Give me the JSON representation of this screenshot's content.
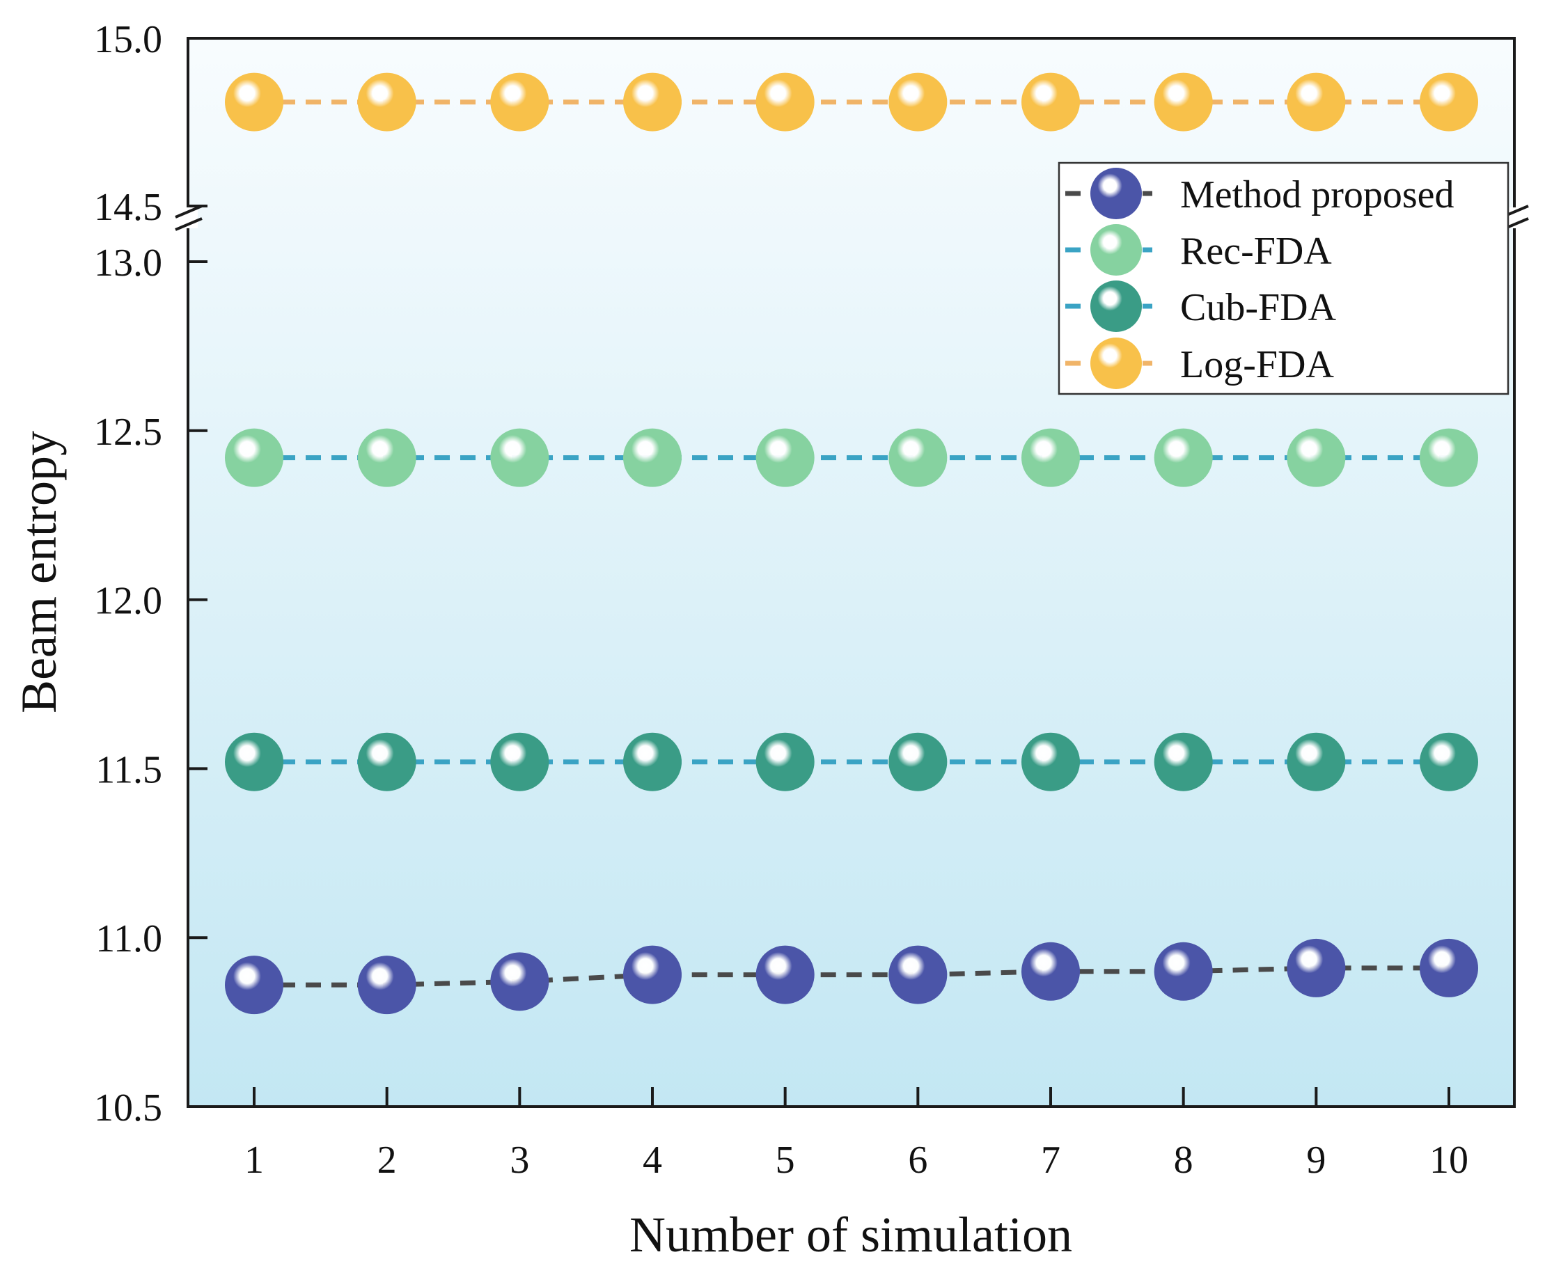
{
  "chart_data": {
    "type": "scatter",
    "xlabel": "Number of simulation",
    "ylabel": "Beam entropy",
    "x": [
      1,
      2,
      3,
      4,
      5,
      6,
      7,
      8,
      9,
      10
    ],
    "x_tick_labels": [
      "1",
      "2",
      "3",
      "4",
      "5",
      "6",
      "7",
      "8",
      "9",
      "10"
    ],
    "y_axis_break": {
      "lower_range": [
        10.5,
        13.1
      ],
      "upper_range": [
        14.5,
        15.0
      ]
    },
    "y_tick_labels": [
      "10.5",
      "11.0",
      "11.5",
      "12.0",
      "12.5",
      "13.0",
      "14.5",
      "15.0"
    ],
    "legend_position": "top-right",
    "series": [
      {
        "name": "Method proposed",
        "values": [
          10.86,
          10.86,
          10.87,
          10.89,
          10.89,
          10.89,
          10.9,
          10.9,
          10.91,
          10.91
        ],
        "marker_color": "#4b55a8",
        "line_color": "#4a4a4a"
      },
      {
        "name": "Rec-FDA",
        "values": [
          12.42,
          12.42,
          12.42,
          12.42,
          12.42,
          12.42,
          12.42,
          12.42,
          12.42,
          12.42
        ],
        "marker_color": "#86d2a0",
        "line_color": "#3aa3c4"
      },
      {
        "name": "Cub-FDA",
        "values": [
          11.52,
          11.52,
          11.52,
          11.52,
          11.52,
          11.52,
          11.52,
          11.52,
          11.52,
          11.52
        ],
        "marker_color": "#3a9c86",
        "line_color": "#3aa3c4"
      },
      {
        "name": "Log-FDA",
        "values": [
          14.81,
          14.81,
          14.81,
          14.81,
          14.81,
          14.81,
          14.81,
          14.81,
          14.81,
          14.81
        ],
        "marker_color": "#f8c14a",
        "line_color": "#f0b468"
      }
    ]
  }
}
